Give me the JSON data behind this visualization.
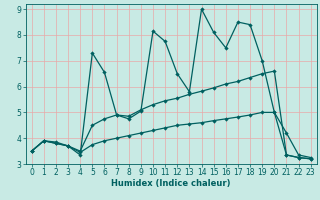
{
  "xlabel": "Humidex (Indice chaleur)",
  "xlim": [
    -0.5,
    23.5
  ],
  "ylim": [
    3,
    9.2
  ],
  "bg_color": "#c8eae4",
  "grid_color": "#e8a8a8",
  "line_color": "#006060",
  "line1_y": [
    3.5,
    3.9,
    3.8,
    3.7,
    3.35,
    7.3,
    6.55,
    4.9,
    4.75,
    5.05,
    8.15,
    7.75,
    6.5,
    5.8,
    9.0,
    8.1,
    7.5,
    8.5,
    8.4,
    7.0,
    5.0,
    4.2,
    3.35,
    3.25
  ],
  "line2_y": [
    3.5,
    3.9,
    3.8,
    3.7,
    3.5,
    4.5,
    4.75,
    4.9,
    4.85,
    5.1,
    5.3,
    5.45,
    5.55,
    5.7,
    5.82,
    5.95,
    6.1,
    6.2,
    6.35,
    6.5,
    6.6,
    3.35,
    3.25,
    3.2
  ],
  "line3_y": [
    3.5,
    3.9,
    3.85,
    3.7,
    3.45,
    3.75,
    3.9,
    4.0,
    4.1,
    4.2,
    4.3,
    4.4,
    4.5,
    4.55,
    4.6,
    4.68,
    4.75,
    4.82,
    4.9,
    5.0,
    5.0,
    3.35,
    3.25,
    3.2
  ],
  "xticks": [
    0,
    1,
    2,
    3,
    4,
    5,
    6,
    7,
    8,
    9,
    10,
    11,
    12,
    13,
    14,
    15,
    16,
    17,
    18,
    19,
    20,
    21,
    22,
    23
  ],
  "yticks": [
    3,
    4,
    5,
    6,
    7,
    8,
    9
  ],
  "xlabel_fontsize": 6,
  "tick_fontsize": 5.5,
  "linewidth": 0.9,
  "markersize": 2.2
}
